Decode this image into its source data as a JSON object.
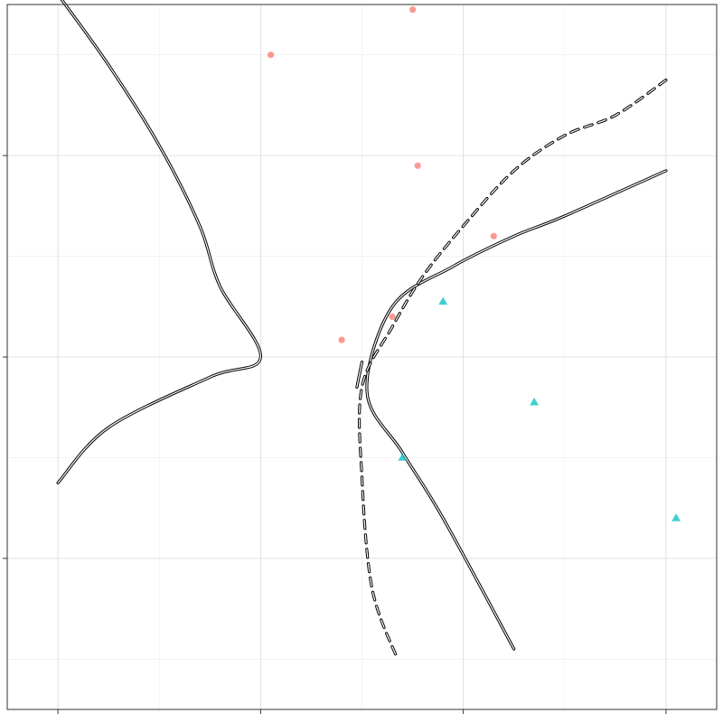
{
  "chart_data": {
    "type": "scatter",
    "title": "",
    "xlabel": "",
    "ylabel": "",
    "xlim": [
      -3.5,
      3.5
    ],
    "ylim": [
      -3.5,
      3.5
    ],
    "x_major_ticks": [
      -3,
      -1,
      1,
      3
    ],
    "y_major_ticks": [
      -2,
      0,
      2
    ],
    "x_minor_ticks": [
      -2,
      0,
      2
    ],
    "y_minor_ticks": [
      -3,
      -1,
      1,
      3
    ],
    "grid": true,
    "tick_labels_visible": false,
    "legend": "none",
    "series": [
      {
        "marker": "circle",
        "color": "#F8766D",
        "points": [
          [
            -0.9,
            3.0
          ],
          [
            0.5,
            3.45
          ],
          [
            0.55,
            1.9
          ],
          [
            1.3,
            1.2
          ],
          [
            0.3,
            0.4
          ],
          [
            -0.2,
            0.17
          ]
        ]
      },
      {
        "marker": "triangle",
        "color": "#00BFC4",
        "points": [
          [
            0.8,
            0.55
          ],
          [
            1.7,
            -0.45
          ],
          [
            0.4,
            -1.0
          ],
          [
            3.1,
            -1.6
          ]
        ]
      }
    ],
    "boundaries": [
      {
        "style": "solid",
        "branches": [
          [
            [
              -3.0,
              3.6
            ],
            [
              -2.5,
              2.9
            ],
            [
              -2.0,
              2.1
            ],
            [
              -1.6,
              1.3
            ],
            [
              -1.4,
              0.7
            ],
            [
              -1.0,
              0.0
            ],
            [
              -1.5,
              -0.2
            ],
            [
              -2.5,
              -0.7
            ],
            [
              -3.0,
              -1.25
            ]
          ],
          [
            [
              3.0,
              1.85
            ],
            [
              2.0,
              1.4
            ],
            [
              1.5,
              1.2
            ],
            [
              0.9,
              0.9
            ],
            [
              0.3,
              0.5
            ],
            [
              0.05,
              -0.35
            ],
            [
              0.4,
              -0.95
            ],
            [
              0.8,
              -1.6
            ],
            [
              1.5,
              -2.9
            ]
          ],
          [
            [
              -0.05,
              -0.3
            ],
            [
              0.0,
              -0.05
            ]
          ]
        ]
      },
      {
        "style": "dashed",
        "branches": [
          [
            [
              3.0,
              2.75
            ],
            [
              2.5,
              2.4
            ],
            [
              2.0,
              2.2
            ],
            [
              1.5,
              1.85
            ],
            [
              1.0,
              1.3
            ],
            [
              0.6,
              0.8
            ],
            [
              0.3,
              0.3
            ],
            [
              0.0,
              -0.3
            ],
            [
              0.0,
              -1.2
            ],
            [
              0.1,
              -2.3
            ],
            [
              0.35,
              -3.0
            ]
          ]
        ]
      }
    ]
  }
}
